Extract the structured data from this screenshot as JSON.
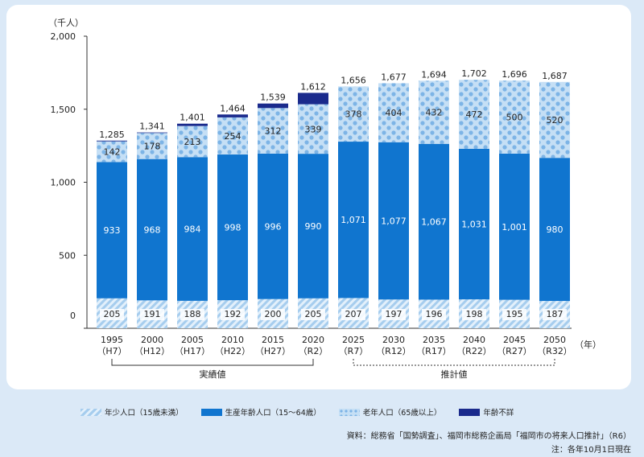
{
  "chart_data": {
    "type": "bar",
    "stacked": true,
    "unit_label": "（千人）",
    "x_unit_label": "（年）",
    "ylim": [
      0,
      2000
    ],
    "yticks": [
      "2,000",
      "1,500",
      "1,000",
      "500",
      "0"
    ],
    "ytick_values": [
      2000,
      1500,
      1000,
      500,
      0
    ],
    "categories": [
      "1995",
      "2000",
      "2005",
      "2010",
      "2015",
      "2020",
      "2025",
      "2030",
      "2035",
      "2040",
      "2045",
      "2050"
    ],
    "categories_era": [
      "（H7）",
      "（H12）",
      "（H17）",
      "（H22）",
      "（H27）",
      "（R2）",
      "（R7）",
      "（R12）",
      "（R17）",
      "（R22）",
      "（R27）",
      "（R32）"
    ],
    "series": [
      {
        "name": "年少人口（15歳未満）",
        "values": [
          205,
          191,
          188,
          192,
          200,
          205,
          207,
          197,
          196,
          198,
          195,
          187
        ],
        "labels": [
          "205",
          "191",
          "188",
          "192",
          "200",
          "205",
          "207",
          "197",
          "196",
          "198",
          "195",
          "187"
        ]
      },
      {
        "name": "生産年齢人口（15～64歳）",
        "values": [
          933,
          968,
          984,
          998,
          996,
          990,
          1071,
          1077,
          1067,
          1031,
          1001,
          980
        ],
        "labels": [
          "933",
          "968",
          "984",
          "998",
          "996",
          "990",
          "1,071",
          "1,077",
          "1,067",
          "1,031",
          "1,001",
          "980"
        ]
      },
      {
        "name": "老年人口（65歳以上）",
        "values": [
          142,
          178,
          213,
          254,
          312,
          339,
          378,
          404,
          432,
          472,
          500,
          520
        ],
        "labels": [
          "142",
          "178",
          "213",
          "254",
          "312",
          "339",
          "378",
          "404",
          "432",
          "472",
          "500",
          "520"
        ]
      },
      {
        "name": "年齢不詳",
        "values": [
          5,
          4,
          16,
          20,
          31,
          78,
          0,
          0,
          0,
          0,
          0,
          0
        ]
      }
    ],
    "totals": [
      1285,
      1341,
      1401,
      1464,
      1539,
      1612,
      1656,
      1677,
      1694,
      1702,
      1696,
      1687
    ],
    "total_labels": [
      "1,285",
      "1,341",
      "1,401",
      "1,464",
      "1,539",
      "1,612",
      "1,656",
      "1,677",
      "1,694",
      "1,702",
      "1,696",
      "1,687"
    ],
    "groups": [
      {
        "label": "実績値",
        "from": 0,
        "to": 5,
        "style": "solid"
      },
      {
        "label": "推計値",
        "from": 6,
        "to": 11,
        "style": "dotted"
      }
    ],
    "colors": {
      "young_a": "#a6cdee",
      "young_b": "#e3f0fb",
      "working": "#1075cf",
      "elderly_bg": "#c5dff5",
      "elderly_dot": "#7db4e6",
      "unknown": "#1a2a8c"
    },
    "grid": false,
    "legend_position": "bottom"
  },
  "legend": {
    "young": "年少人口（15歳未満）",
    "working": "生産年齢人口（15～64歳）",
    "elderly": "老年人口（65歳以上）",
    "unknown": "年齢不詳"
  },
  "source": "資料：総務省「国勢調査」、福岡市総務企画局「福岡市の将来人口推計」（R6）",
  "note": "注：各年10月1日現在"
}
